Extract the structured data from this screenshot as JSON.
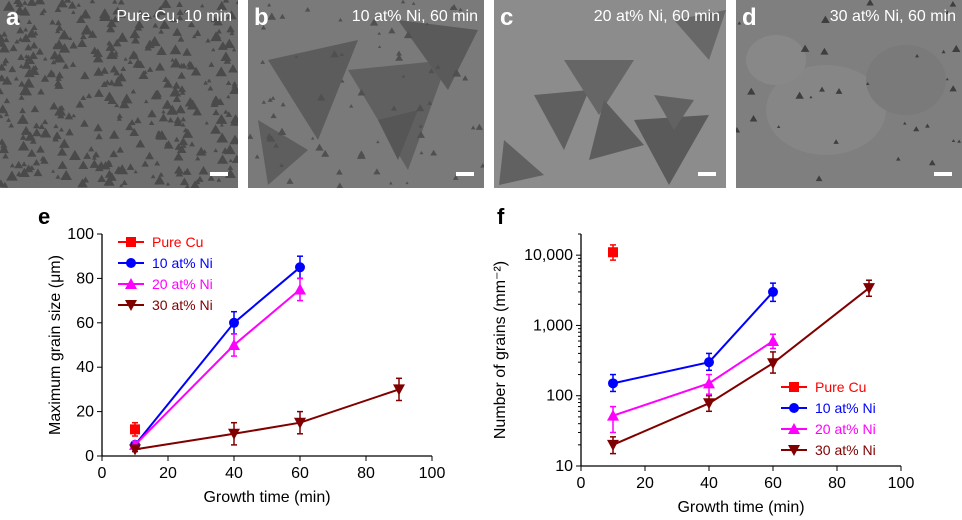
{
  "micrographs": [
    {
      "letter": "a",
      "caption": "Pure Cu, 10 min",
      "bg": "#6d6d6d"
    },
    {
      "letter": "b",
      "caption": "10 at% Ni, 60 min",
      "bg": "#767676"
    },
    {
      "letter": "c",
      "caption": "20 at% Ni, 60 min",
      "bg": "#8a8a8a"
    },
    {
      "letter": "d",
      "caption": "30 at% Ni, 60 min",
      "bg": "#7d7d7d"
    }
  ],
  "colors": {
    "pure_cu": "#ff0000",
    "ni10": "#0000ff",
    "ni20": "#ff00ff",
    "ni30": "#800000"
  },
  "chart_data": [
    {
      "panel": "e",
      "type": "line",
      "xlabel": "Growth time (min)",
      "ylabel": "Maximum grain size (μm)",
      "xlim": [
        0,
        100
      ],
      "ylim": [
        0,
        100
      ],
      "xticks": [
        "0",
        "20",
        "40",
        "60",
        "80",
        "100"
      ],
      "yticks": [
        "0",
        "20",
        "40",
        "60",
        "80",
        "100"
      ],
      "legend_position": "top-left",
      "series": [
        {
          "name": "Pure Cu",
          "marker": "square",
          "x": [
            10
          ],
          "y": [
            12
          ],
          "err": [
            3
          ]
        },
        {
          "name": "10 at% Ni",
          "marker": "circle",
          "x": [
            10,
            40,
            60
          ],
          "y": [
            5,
            60,
            85
          ],
          "err": [
            1.5,
            5,
            5
          ]
        },
        {
          "name": "20 at% Ni",
          "marker": "triangle-up",
          "x": [
            10,
            40,
            60
          ],
          "y": [
            5,
            50,
            75
          ],
          "err": [
            1.5,
            5,
            5
          ]
        },
        {
          "name": "30 at% Ni",
          "marker": "triangle-down",
          "x": [
            10,
            40,
            60,
            90
          ],
          "y": [
            3,
            10,
            15,
            30
          ],
          "err": [
            1,
            5,
            5,
            5
          ]
        }
      ]
    },
    {
      "panel": "f",
      "type": "line",
      "yscale": "log",
      "xlabel": "Growth time (min)",
      "ylabel": "Number of grains (mm⁻²)",
      "xlim": [
        0,
        100
      ],
      "ylim": [
        10,
        20000
      ],
      "xticks": [
        "0",
        "20",
        "40",
        "60",
        "80",
        "100"
      ],
      "yticks": [
        "10",
        "100",
        "1,000",
        "10,000"
      ],
      "legend_position": "bottom-right",
      "series": [
        {
          "name": "Pure Cu",
          "marker": "square",
          "x": [
            10
          ],
          "y": [
            11000
          ],
          "err_lo": [
            8500
          ],
          "err_hi": [
            14000
          ]
        },
        {
          "name": "10 at% Ni",
          "marker": "circle",
          "x": [
            10,
            40,
            60
          ],
          "y": [
            150,
            300,
            3000
          ],
          "err_lo": [
            115,
            230,
            2200
          ],
          "err_hi": [
            200,
            400,
            4000
          ]
        },
        {
          "name": "20 at% Ni",
          "marker": "triangle-up",
          "x": [
            10,
            40,
            60
          ],
          "y": [
            52,
            150,
            600
          ],
          "err_lo": [
            30,
            105,
            470
          ],
          "err_hi": [
            70,
            200,
            750
          ]
        },
        {
          "name": "30 at% Ni",
          "marker": "triangle-down",
          "x": [
            10,
            40,
            60,
            90
          ],
          "y": [
            20,
            78,
            290,
            3400
          ],
          "err_lo": [
            15,
            60,
            210,
            2600
          ],
          "err_hi": [
            26,
            100,
            420,
            4400
          ]
        }
      ]
    }
  ]
}
